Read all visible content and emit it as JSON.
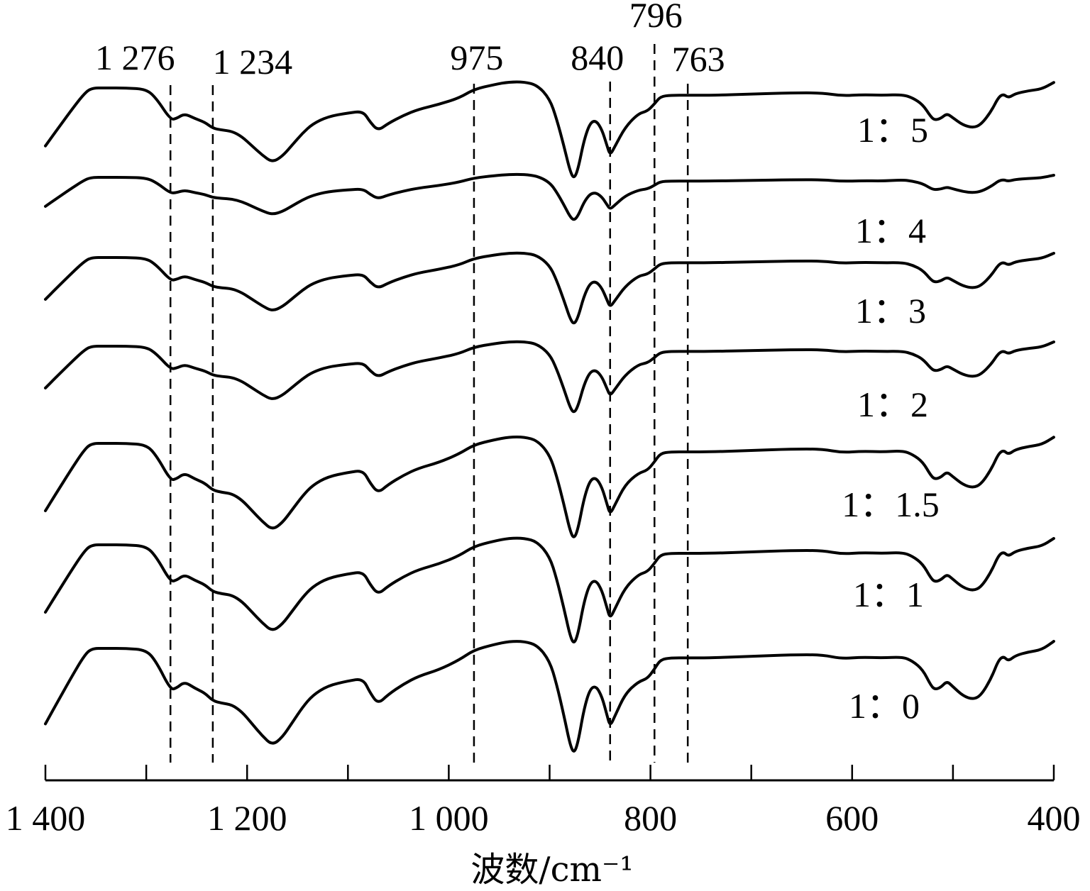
{
  "chart_data": {
    "type": "line",
    "xlabel": "波数/cm⁻¹",
    "ylabel": "",
    "xlim": [
      1400,
      400
    ],
    "x_reversed": true,
    "x_ticks": [
      1400,
      1300,
      1200,
      1100,
      1000,
      900,
      800,
      700,
      600,
      500,
      400
    ],
    "x_tick_labels": [
      {
        "value": 1400,
        "label": "1 400"
      },
      {
        "value": 1200,
        "label": "1 200"
      },
      {
        "value": 1000,
        "label": "1 000"
      },
      {
        "value": 800,
        "label": "800"
      },
      {
        "value": 600,
        "label": "600"
      },
      {
        "value": 400,
        "label": "400"
      }
    ],
    "y_axis_shown": false,
    "grid": false,
    "reference_lines": [
      {
        "x": 1276,
        "label": "1 276"
      },
      {
        "x": 1234,
        "label": "1 234"
      },
      {
        "x": 975,
        "label": "975"
      },
      {
        "x": 840,
        "label": "840"
      },
      {
        "x": 796,
        "label": "796"
      },
      {
        "x": 763,
        "label": "763"
      }
    ],
    "series_template": [
      [
        1400,
        0.95
      ],
      [
        1390,
        0.72
      ],
      [
        1375,
        0.38
      ],
      [
        1363,
        0.12
      ],
      [
        1355,
        0.0
      ],
      [
        1340,
        0.0
      ],
      [
        1320,
        0.0
      ],
      [
        1300,
        0.02
      ],
      [
        1290,
        0.17
      ],
      [
        1276,
        0.52
      ],
      [
        1270,
        0.5
      ],
      [
        1262,
        0.42
      ],
      [
        1252,
        0.5
      ],
      [
        1242,
        0.56
      ],
      [
        1234,
        0.66
      ],
      [
        1225,
        0.69
      ],
      [
        1215,
        0.71
      ],
      [
        1205,
        0.8
      ],
      [
        1195,
        0.95
      ],
      [
        1185,
        1.1
      ],
      [
        1175,
        1.22
      ],
      [
        1165,
        1.12
      ],
      [
        1155,
        0.93
      ],
      [
        1145,
        0.74
      ],
      [
        1135,
        0.59
      ],
      [
        1120,
        0.47
      ],
      [
        1100,
        0.41
      ],
      [
        1085,
        0.38
      ],
      [
        1078,
        0.56
      ],
      [
        1070,
        0.7
      ],
      [
        1060,
        0.58
      ],
      [
        1045,
        0.45
      ],
      [
        1030,
        0.35
      ],
      [
        1010,
        0.27
      ],
      [
        990,
        0.15
      ],
      [
        975,
        0.02
      ],
      [
        955,
        -0.05
      ],
      [
        940,
        -0.09
      ],
      [
        925,
        -0.09
      ],
      [
        912,
        -0.04
      ],
      [
        900,
        0.16
      ],
      [
        893,
        0.46
      ],
      [
        886,
        0.85
      ],
      [
        880,
        1.22
      ],
      [
        876,
        1.35
      ],
      [
        872,
        1.22
      ],
      [
        866,
        0.78
      ],
      [
        860,
        0.52
      ],
      [
        854,
        0.48
      ],
      [
        848,
        0.62
      ],
      [
        843,
        0.86
      ],
      [
        840,
        1.0
      ],
      [
        835,
        0.86
      ],
      [
        825,
        0.58
      ],
      [
        812,
        0.42
      ],
      [
        803,
        0.38
      ],
      [
        796,
        0.26
      ],
      [
        790,
        0.14
      ],
      [
        780,
        0.12
      ],
      [
        763,
        0.12
      ],
      [
        740,
        0.12
      ],
      [
        700,
        0.1
      ],
      [
        660,
        0.08
      ],
      [
        630,
        0.08
      ],
      [
        610,
        0.13
      ],
      [
        590,
        0.11
      ],
      [
        570,
        0.12
      ],
      [
        550,
        0.12
      ],
      [
        540,
        0.18
      ],
      [
        530,
        0.3
      ],
      [
        522,
        0.52
      ],
      [
        518,
        0.58
      ],
      [
        512,
        0.55
      ],
      [
        506,
        0.46
      ],
      [
        500,
        0.54
      ],
      [
        490,
        0.67
      ],
      [
        480,
        0.72
      ],
      [
        472,
        0.66
      ],
      [
        462,
        0.42
      ],
      [
        455,
        0.17
      ],
      [
        450,
        0.11
      ],
      [
        445,
        0.18
      ],
      [
        438,
        0.1
      ],
      [
        425,
        0.05
      ],
      [
        412,
        0.02
      ],
      [
        400,
        -0.1
      ]
    ],
    "series": [
      {
        "name": "1：5",
        "baseline": 124,
        "primary_scale": 86,
        "mid_scale": 95,
        "ir_scale": 78
      },
      {
        "name": "1：4",
        "baseline": 250,
        "primary_scale": 43,
        "mid_scale": 45,
        "ir_scale": 30
      },
      {
        "name": "1：3",
        "baseline": 363,
        "primary_scale": 62,
        "mid_scale": 70,
        "ir_scale": 60
      },
      {
        "name": "1：2",
        "baseline": 488,
        "primary_scale": 62,
        "mid_scale": 70,
        "ir_scale": 60
      },
      {
        "name": "1：1.5",
        "baseline": 625,
        "primary_scale": 100,
        "mid_scale": 100,
        "ir_scale": 87
      },
      {
        "name": "1：1",
        "baseline": 768,
        "primary_scale": 100,
        "mid_scale": 104,
        "ir_scale": 90
      },
      {
        "name": "1：0",
        "baseline": 914,
        "primary_scale": 112,
        "mid_scale": 110,
        "ir_scale": 100
      }
    ]
  }
}
